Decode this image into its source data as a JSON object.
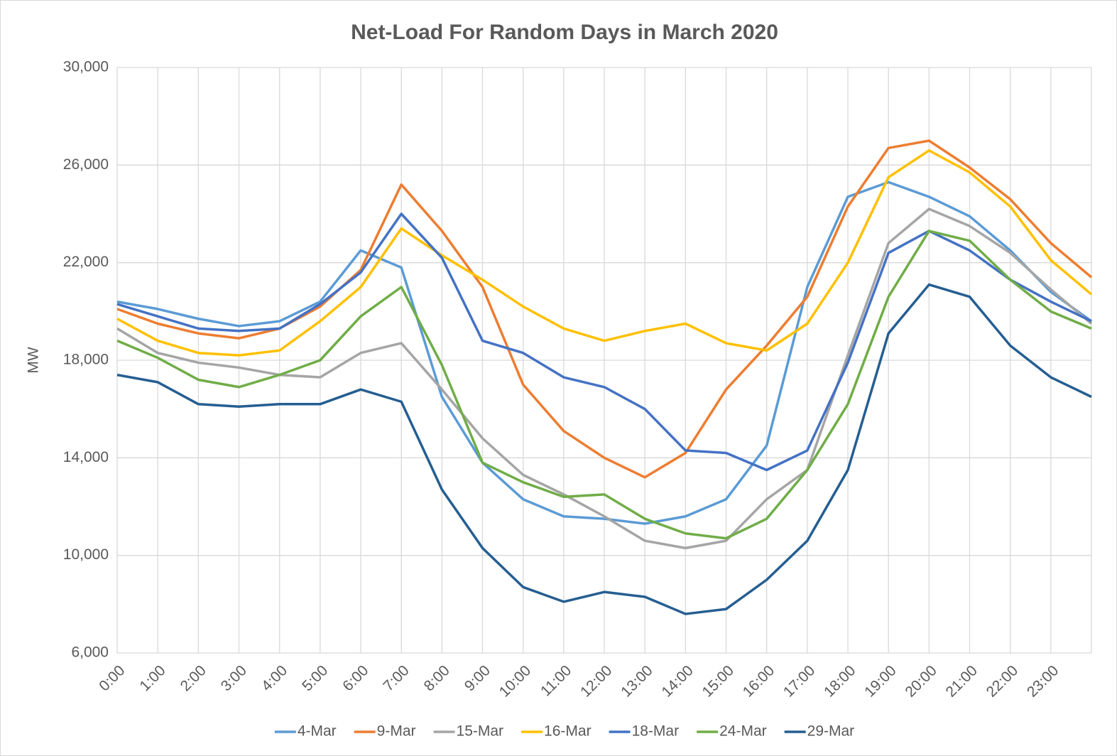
{
  "chart_data": {
    "type": "line",
    "title": "Net-Load For Random Days in March 2020",
    "y_label": "MW",
    "x": [
      0,
      1,
      2,
      3,
      4,
      5,
      6,
      7,
      8,
      9,
      10,
      11,
      12,
      13,
      14,
      15,
      16,
      17,
      18,
      19,
      20,
      21,
      22,
      23,
      24
    ],
    "xlim": [
      0,
      24
    ],
    "xticks": [
      {
        "value": 0,
        "label": "0:00"
      },
      {
        "value": 1,
        "label": "1:00"
      },
      {
        "value": 2,
        "label": "2:00"
      },
      {
        "value": 3,
        "label": "3:00"
      },
      {
        "value": 4,
        "label": "4:00"
      },
      {
        "value": 5,
        "label": "5:00"
      },
      {
        "value": 6,
        "label": "6:00"
      },
      {
        "value": 7,
        "label": "7:00"
      },
      {
        "value": 8,
        "label": "8:00"
      },
      {
        "value": 9,
        "label": "9:00"
      },
      {
        "value": 10,
        "label": "10:00"
      },
      {
        "value": 11,
        "label": "11:00"
      },
      {
        "value": 12,
        "label": "12:00"
      },
      {
        "value": 13,
        "label": "13:00"
      },
      {
        "value": 14,
        "label": "14:00"
      },
      {
        "value": 15,
        "label": "15:00"
      },
      {
        "value": 16,
        "label": "16:00"
      },
      {
        "value": 17,
        "label": "17:00"
      },
      {
        "value": 18,
        "label": "18:00"
      },
      {
        "value": 19,
        "label": "19:00"
      },
      {
        "value": 20,
        "label": "20:00"
      },
      {
        "value": 21,
        "label": "21:00"
      },
      {
        "value": 22,
        "label": "22:00"
      },
      {
        "value": 23,
        "label": "23:00"
      }
    ],
    "ylim": [
      6000,
      30000
    ],
    "yticks": [
      {
        "value": 6000,
        "label": "6,000"
      },
      {
        "value": 10000,
        "label": "10,000"
      },
      {
        "value": 14000,
        "label": "14,000"
      },
      {
        "value": 18000,
        "label": "18,000"
      },
      {
        "value": 22000,
        "label": "22,000"
      },
      {
        "value": 26000,
        "label": "26,000"
      },
      {
        "value": 30000,
        "label": "30,000"
      }
    ],
    "grid": true,
    "legend": "bottom",
    "series": [
      {
        "name": "4-Mar",
        "color": "#5b9bd5",
        "values": [
          20400,
          20100,
          19700,
          19400,
          19600,
          20400,
          22500,
          21800,
          16500,
          13800,
          12300,
          11600,
          11500,
          11300,
          11600,
          12300,
          14500,
          21000,
          24700,
          25300,
          24700,
          23900,
          22500,
          20800,
          19600
        ]
      },
      {
        "name": "9-Mar",
        "color": "#ed7d31",
        "values": [
          20100,
          19500,
          19100,
          18900,
          19300,
          20200,
          21700,
          25200,
          23300,
          21000,
          17000,
          15100,
          14000,
          13200,
          14200,
          16800,
          18600,
          20600,
          24300,
          26700,
          27000,
          25900,
          24600,
          22800,
          21400
        ]
      },
      {
        "name": "15-Mar",
        "color": "#a5a5a5",
        "values": [
          19300,
          18300,
          17900,
          17700,
          17400,
          17300,
          18300,
          18700,
          16800,
          14800,
          13300,
          12500,
          11600,
          10600,
          10300,
          10600,
          12300,
          13500,
          18200,
          22800,
          24200,
          23500,
          22400,
          20900,
          19500
        ]
      },
      {
        "name": "16-Mar",
        "color": "#ffc000",
        "values": [
          19700,
          18800,
          18300,
          18200,
          18400,
          19600,
          21000,
          23400,
          22300,
          21300,
          20200,
          19300,
          18800,
          19200,
          19500,
          18700,
          18400,
          19500,
          22000,
          25500,
          26600,
          25700,
          24300,
          22100,
          20700
        ]
      },
      {
        "name": "18-Mar",
        "color": "#4472c4",
        "values": [
          20300,
          19800,
          19300,
          19200,
          19300,
          20300,
          21600,
          24000,
          22200,
          18800,
          18300,
          17300,
          16900,
          16000,
          14300,
          14200,
          13500,
          14300,
          17900,
          22400,
          23300,
          22500,
          21300,
          20400,
          19600
        ]
      },
      {
        "name": "24-Mar",
        "color": "#70ad47",
        "values": [
          18800,
          18100,
          17200,
          16900,
          17400,
          18000,
          19800,
          21000,
          17800,
          13800,
          13000,
          12400,
          12500,
          11500,
          10900,
          10700,
          11500,
          13500,
          16200,
          20600,
          23300,
          22900,
          21300,
          20000,
          19300
        ]
      },
      {
        "name": "29-Mar",
        "color": "#255e91",
        "values": [
          17400,
          17100,
          16200,
          16100,
          16200,
          16200,
          16800,
          16300,
          12700,
          10300,
          8700,
          8100,
          8500,
          8300,
          7600,
          7800,
          9000,
          10600,
          13500,
          19100,
          21100,
          20600,
          18600,
          17300,
          16500
        ]
      }
    ]
  }
}
